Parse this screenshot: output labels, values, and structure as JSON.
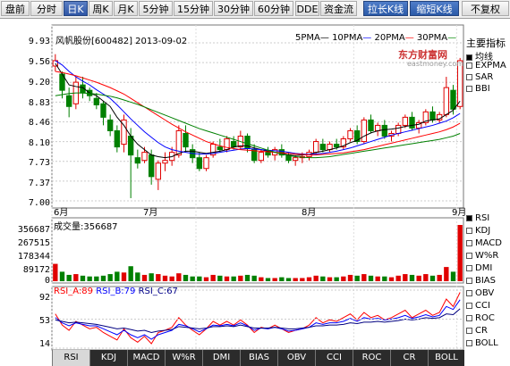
{
  "toolbar": {
    "buttons": [
      "盘前",
      "分时",
      "日K",
      "周K",
      "月K",
      "5分钟",
      "15分钟",
      "30分钟",
      "60分钟",
      "DDE",
      "资金流",
      "拉长K线",
      "缩短K线",
      "不复权"
    ],
    "selected": "日K"
  },
  "chart": {
    "header": "风帆股份[600482] 2013-09-02",
    "ma_legend": [
      "5PMA",
      "10PMA",
      "20PMA",
      "30PMA"
    ],
    "ma_colors": [
      "#000000",
      "#0000ff",
      "#ff0000",
      "#008000"
    ],
    "y_ticks": [
      "9.93",
      "9.56",
      "9.20",
      "8.83",
      "8.46",
      "8.10",
      "7.73",
      "7.37",
      "7.00"
    ],
    "x_months": [
      "6月",
      "7月",
      "8月",
      "9月"
    ],
    "watermark_cn": "东方财富网",
    "watermark_en": "eastmoney.com"
  },
  "main_indicator": {
    "title": "主要指标",
    "items": [
      {
        "label": "均线",
        "checked": true
      },
      {
        "label": "EXPMA",
        "checked": false
      },
      {
        "label": "SAR",
        "checked": false
      },
      {
        "label": "BBI",
        "checked": false
      }
    ]
  },
  "volume": {
    "title": "成交量:356687",
    "y_ticks": [
      "356687",
      "267515",
      "178344",
      "89172",
      "0"
    ]
  },
  "rsi": {
    "legend": [
      {
        "label": "RSI_A:89",
        "color": "#ff0000"
      },
      {
        "label": "RSI_B:79",
        "color": "#0000ff"
      },
      {
        "label": "RSI_C:67",
        "color": "#000080"
      }
    ],
    "y_ticks": [
      "92",
      "53",
      "14"
    ]
  },
  "sub_indicator": {
    "items": [
      {
        "label": "RSI",
        "checked": true
      },
      {
        "label": "KDJ",
        "checked": false
      },
      {
        "label": "MACD",
        "checked": false
      },
      {
        "label": "W%R",
        "checked": false
      },
      {
        "label": "DMI",
        "checked": false
      },
      {
        "label": "BIAS",
        "checked": false
      },
      {
        "label": "OBV",
        "checked": false
      },
      {
        "label": "CCI",
        "checked": false
      },
      {
        "label": "ROC",
        "checked": false
      },
      {
        "label": "CR",
        "checked": false
      },
      {
        "label": "BOLL",
        "checked": false
      }
    ]
  },
  "bottom_tabs": [
    "RSI",
    "KDJ",
    "MACD",
    "W%R",
    "DMI",
    "BIAS",
    "OBV",
    "CCI",
    "ROC",
    "CR",
    "BOLL"
  ],
  "bottom_tab_selected": "RSI",
  "chart_data": {
    "type": "candlestick",
    "title": "风帆股份[600482] 2013-09-02",
    "date_range": [
      "2013-06",
      "2013-09-02"
    ],
    "ylim": [
      7.0,
      9.93
    ],
    "volume_max": 356687,
    "last_volume": 356687,
    "rsi_last": {
      "RSI_A": 89,
      "RSI_B": 79,
      "RSI_C": 67
    },
    "candles": [
      [
        9.5,
        9.72,
        9.4,
        9.6
      ],
      [
        9.35,
        9.4,
        8.9,
        9.05
      ],
      [
        8.95,
        9.1,
        8.55,
        8.75
      ],
      [
        8.8,
        9.3,
        8.7,
        9.2
      ],
      [
        9.15,
        9.3,
        8.9,
        9.0
      ],
      [
        9.05,
        9.1,
        8.85,
        8.95
      ],
      [
        8.9,
        9.0,
        8.7,
        8.78
      ],
      [
        8.8,
        8.85,
        8.4,
        8.55
      ],
      [
        8.5,
        8.6,
        8.2,
        8.3
      ],
      [
        8.3,
        8.4,
        7.9,
        8.0
      ],
      [
        8.05,
        8.6,
        7.9,
        8.5
      ],
      [
        8.2,
        8.35,
        7.05,
        7.85
      ],
      [
        7.8,
        7.95,
        7.6,
        7.7
      ],
      [
        7.75,
        8.0,
        7.7,
        7.9
      ],
      [
        7.85,
        7.95,
        7.3,
        7.45
      ],
      [
        7.4,
        7.75,
        7.2,
        7.7
      ],
      [
        7.7,
        7.9,
        7.55,
        7.75
      ],
      [
        7.75,
        8.0,
        7.65,
        7.9
      ],
      [
        7.85,
        8.4,
        7.8,
        8.3
      ],
      [
        8.25,
        8.4,
        7.9,
        8.0
      ],
      [
        7.95,
        8.05,
        7.7,
        7.8
      ],
      [
        7.8,
        7.9,
        7.55,
        7.6
      ],
      [
        7.6,
        7.85,
        7.55,
        7.8
      ],
      [
        7.85,
        8.1,
        7.8,
        8.05
      ],
      [
        8.0,
        8.15,
        7.9,
        7.95
      ],
      [
        7.95,
        8.2,
        7.9,
        8.15
      ],
      [
        8.1,
        8.2,
        7.95,
        8.0
      ],
      [
        8.0,
        8.3,
        7.95,
        8.2
      ],
      [
        8.2,
        8.25,
        7.9,
        7.98
      ],
      [
        7.95,
        8.05,
        7.7,
        7.75
      ],
      [
        7.75,
        7.95,
        7.7,
        7.9
      ],
      [
        7.9,
        8.0,
        7.8,
        7.85
      ],
      [
        7.85,
        8.0,
        7.75,
        7.95
      ],
      [
        7.95,
        8.05,
        7.8,
        7.85
      ],
      [
        7.85,
        7.9,
        7.7,
        7.75
      ],
      [
        7.75,
        7.85,
        7.65,
        7.8
      ],
      [
        7.8,
        7.9,
        7.7,
        7.82
      ],
      [
        7.82,
        7.95,
        7.75,
        7.9
      ],
      [
        7.9,
        8.15,
        7.85,
        8.1
      ],
      [
        8.05,
        8.15,
        7.9,
        7.95
      ],
      [
        7.95,
        8.1,
        7.9,
        8.05
      ],
      [
        8.05,
        8.15,
        7.95,
        8.0
      ],
      [
        8.0,
        8.2,
        7.95,
        8.15
      ],
      [
        8.15,
        8.35,
        8.1,
        8.3
      ],
      [
        8.3,
        8.4,
        8.05,
        8.1
      ],
      [
        8.1,
        8.55,
        8.05,
        8.5
      ],
      [
        8.5,
        8.6,
        8.25,
        8.3
      ],
      [
        8.3,
        8.45,
        8.2,
        8.4
      ],
      [
        8.4,
        8.5,
        8.15,
        8.2
      ],
      [
        8.2,
        8.3,
        8.1,
        8.25
      ],
      [
        8.25,
        8.45,
        8.2,
        8.4
      ],
      [
        8.4,
        8.6,
        8.35,
        8.55
      ],
      [
        8.55,
        8.65,
        8.3,
        8.35
      ],
      [
        8.35,
        8.5,
        8.25,
        8.45
      ],
      [
        8.45,
        8.7,
        8.4,
        8.65
      ],
      [
        8.65,
        8.75,
        8.45,
        8.5
      ],
      [
        8.5,
        8.65,
        8.45,
        8.6
      ],
      [
        8.6,
        9.3,
        8.55,
        9.1
      ],
      [
        9.05,
        9.15,
        8.6,
        8.7
      ],
      [
        8.75,
        9.65,
        8.7,
        9.6
      ]
    ],
    "volume_values": [
      110000,
      60000,
      40000,
      45000,
      35000,
      30000,
      30000,
      35000,
      45000,
      60000,
      55000,
      95000,
      55000,
      40000,
      50000,
      45000,
      35000,
      30000,
      50000,
      40000,
      30000,
      30000,
      25000,
      40000,
      35000,
      30000,
      30000,
      35000,
      40000,
      35000,
      25000,
      20000,
      20000,
      25000,
      20000,
      20000,
      20000,
      25000,
      35000,
      30000,
      25000,
      25000,
      30000,
      40000,
      35000,
      45000,
      35000,
      30000,
      30000,
      25000,
      35000,
      45000,
      40000,
      35000,
      45000,
      35000,
      40000,
      90000,
      60000,
      356687
    ],
    "ma5": [
      9.55,
      9.35,
      9.15,
      9.12,
      9.1,
      9.0,
      8.95,
      8.85,
      8.75,
      8.55,
      8.4,
      8.2,
      8.05,
      7.95,
      7.85,
      7.82,
      7.8,
      7.82,
      7.88,
      7.92,
      7.92,
      7.9,
      7.88,
      7.9,
      7.92,
      7.95,
      8.0,
      8.02,
      8.02,
      7.98,
      7.95,
      7.92,
      7.9,
      7.88,
      7.85,
      7.84,
      7.85,
      7.86,
      7.9,
      7.92,
      7.95,
      7.98,
      8.02,
      8.08,
      8.12,
      8.2,
      8.26,
      8.3,
      8.32,
      8.33,
      8.35,
      8.38,
      8.4,
      8.42,
      8.48,
      8.5,
      8.52,
      8.6,
      8.68,
      8.85
    ],
    "ma10": [
      9.6,
      9.52,
      9.4,
      9.3,
      9.22,
      9.15,
      9.06,
      8.98,
      8.9,
      8.78,
      8.65,
      8.52,
      8.4,
      8.28,
      8.18,
      8.08,
      8.0,
      7.95,
      7.92,
      7.9,
      7.88,
      7.87,
      7.87,
      7.88,
      7.9,
      7.92,
      7.94,
      7.96,
      7.97,
      7.96,
      7.95,
      7.94,
      7.93,
      7.92,
      7.9,
      7.88,
      7.87,
      7.86,
      7.87,
      7.88,
      7.9,
      7.92,
      7.95,
      7.98,
      8.02,
      8.06,
      8.1,
      8.14,
      8.18,
      8.22,
      8.25,
      8.28,
      8.31,
      8.34,
      8.37,
      8.4,
      8.44,
      8.48,
      8.54,
      8.62
    ],
    "ma20": [
      9.4,
      9.38,
      9.35,
      9.32,
      9.28,
      9.24,
      9.2,
      9.15,
      9.1,
      9.04,
      8.98,
      8.9,
      8.82,
      8.74,
      8.66,
      8.58,
      8.5,
      8.42,
      8.35,
      8.28,
      8.22,
      8.16,
      8.1,
      8.06,
      8.02,
      7.99,
      7.97,
      7.95,
      7.94,
      7.93,
      7.92,
      7.91,
      7.9,
      7.89,
      7.88,
      7.87,
      7.86,
      7.85,
      7.85,
      7.86,
      7.87,
      7.88,
      7.89,
      7.91,
      7.93,
      7.95,
      7.98,
      8.01,
      8.04,
      8.07,
      8.1,
      8.13,
      8.16,
      8.19,
      8.22,
      8.25,
      8.28,
      8.32,
      8.37,
      8.44
    ],
    "ma30": [
      8.95,
      8.97,
      8.99,
      9.0,
      9.0,
      8.99,
      8.98,
      8.96,
      8.94,
      8.91,
      8.87,
      8.83,
      8.79,
      8.74,
      8.69,
      8.64,
      8.59,
      8.54,
      8.49,
      8.44,
      8.39,
      8.34,
      8.3,
      8.26,
      8.22,
      8.18,
      8.14,
      8.1,
      8.06,
      8.02,
      7.98,
      7.94,
      7.9,
      7.87,
      7.84,
      7.82,
      7.81,
      7.8,
      7.8,
      7.81,
      7.82,
      7.84,
      7.86,
      7.88,
      7.9,
      7.92,
      7.94,
      7.96,
      7.98,
      8.0,
      8.02,
      8.04,
      8.06,
      8.08,
      8.1,
      8.12,
      8.14,
      8.17,
      8.2,
      8.25
    ],
    "rsi_a": [
      60,
      45,
      38,
      50,
      45,
      40,
      42,
      35,
      30,
      25,
      40,
      28,
      22,
      30,
      20,
      35,
      38,
      42,
      55,
      45,
      38,
      32,
      40,
      50,
      45,
      50,
      45,
      52,
      45,
      35,
      42,
      40,
      45,
      40,
      35,
      38,
      40,
      45,
      55,
      48,
      52,
      50,
      55,
      60,
      52,
      62,
      55,
      58,
      52,
      55,
      60,
      65,
      55,
      60,
      65,
      58,
      62,
      80,
      70,
      89
    ],
    "rsi_b": [
      55,
      48,
      44,
      48,
      46,
      44,
      44,
      40,
      36,
      32,
      38,
      32,
      28,
      32,
      26,
      32,
      35,
      38,
      46,
      44,
      40,
      36,
      40,
      45,
      44,
      46,
      44,
      48,
      44,
      38,
      41,
      40,
      42,
      40,
      37,
      38,
      40,
      42,
      48,
      46,
      48,
      48,
      50,
      54,
      50,
      55,
      53,
      54,
      52,
      53,
      55,
      58,
      54,
      56,
      59,
      56,
      58,
      70,
      66,
      79
    ],
    "rsi_c": [
      52,
      50,
      48,
      49,
      48,
      47,
      46,
      44,
      42,
      40,
      41,
      39,
      37,
      38,
      35,
      37,
      38,
      39,
      43,
      42,
      41,
      40,
      41,
      43,
      43,
      44,
      43,
      45,
      43,
      41,
      41,
      41,
      42,
      41,
      40,
      40,
      41,
      42,
      44,
      44,
      45,
      45,
      46,
      48,
      47,
      49,
      49,
      50,
      49,
      50,
      51,
      53,
      52,
      53,
      55,
      54,
      55,
      60,
      59,
      67
    ]
  }
}
